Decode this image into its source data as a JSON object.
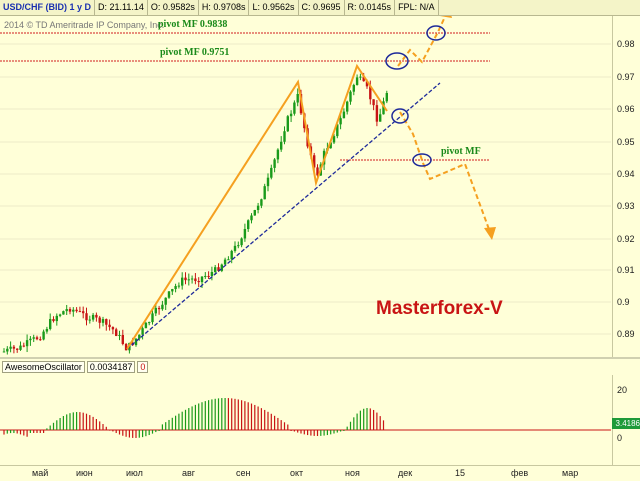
{
  "header": {
    "symbol": "USD/CHF (BID) 1 у D",
    "date": "D: 21.11.14",
    "open": "O: 0.9582s",
    "high": "H: 0.9708s",
    "low": "L: 0.9562s",
    "close": "C: 0.9695",
    "range": "R: 0.0145s",
    "fpl": "FPL: N/A"
  },
  "copyright": "2014 © TD Ameritrade IP Company, Inc.",
  "annotations": {
    "pivot1": "pivot MF 0.9838",
    "pivot2": "pivot MF 0.9751",
    "pivot3": "pivot MF",
    "brand": "Masterforex-V"
  },
  "price_axis": {
    "ticks": [
      "0.98",
      "0.97",
      "0.96",
      "0.95",
      "0.94",
      "0.93",
      "0.92",
      "0.91",
      "0.9",
      "0.89"
    ]
  },
  "oscillator": {
    "name": "AwesomeOscillator",
    "value": "0.0034187",
    "zero_tag": "0",
    "axis_top": "20",
    "badge": "3.4186",
    "axis_zero": "0"
  },
  "time_axis": {
    "labels": [
      "май",
      "июн",
      "июл",
      "авг",
      "сен",
      "окт",
      "ноя",
      "дек",
      "15",
      "фев",
      "мар"
    ]
  },
  "colors": {
    "up": "#1a9a1a",
    "down": "#c81414",
    "pivot_line": "#d21e1e",
    "trend": "#f5a020",
    "support": "#1e2a9a"
  }
}
